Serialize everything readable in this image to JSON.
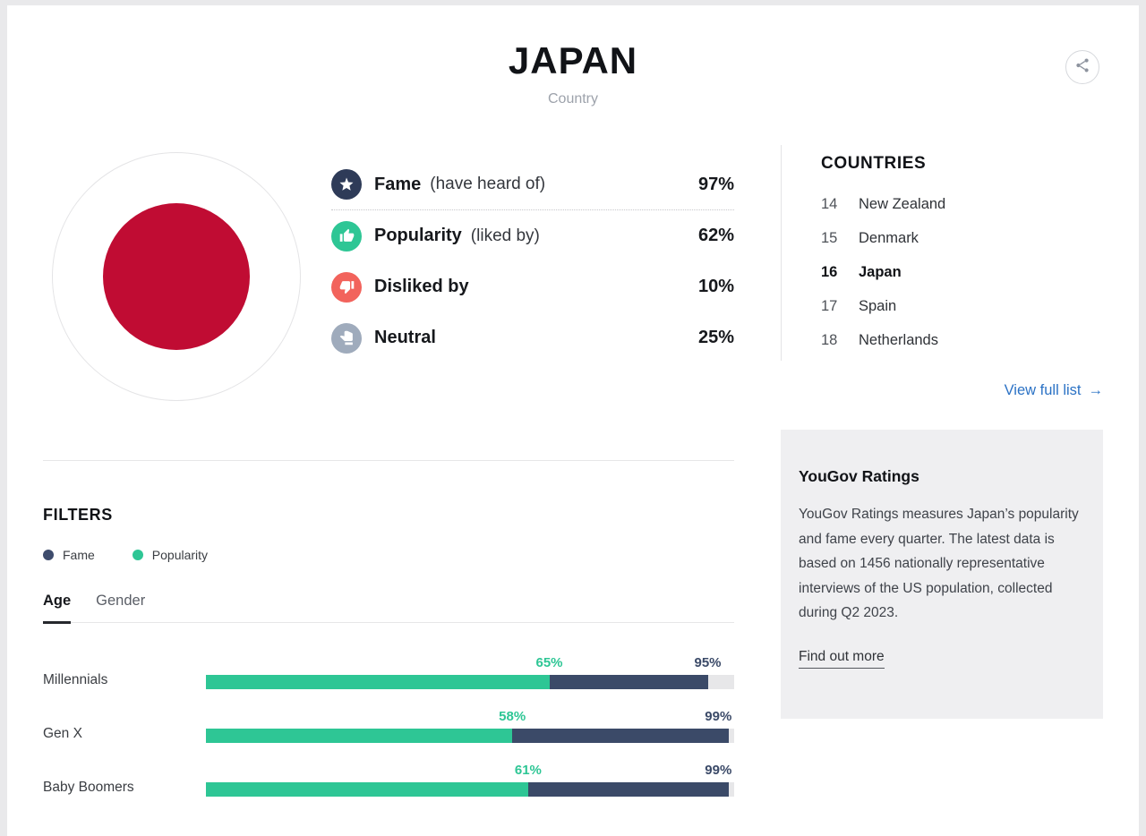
{
  "page": {
    "title": "JAPAN",
    "subtitle": "Country"
  },
  "stats": {
    "rows": [
      {
        "label": "Fame",
        "qualifier": "(have heard of)",
        "value": "97%",
        "icon": "star-icon",
        "color": "#2e3b58"
      },
      {
        "label": "Popularity",
        "qualifier": "(liked by)",
        "value": "62%",
        "icon": "thumb-up-icon",
        "color": "#2ec695"
      },
      {
        "label": "Disliked by",
        "qualifier": "",
        "value": "10%",
        "icon": "thumb-down-icon",
        "color": "#f2635c"
      },
      {
        "label": "Neutral",
        "qualifier": "",
        "value": "25%",
        "icon": "thumb-side-icon",
        "color": "#9fabbc"
      }
    ]
  },
  "countries": {
    "title": "COUNTRIES",
    "items": [
      {
        "rank": "14",
        "name": "New Zealand",
        "active": false
      },
      {
        "rank": "15",
        "name": "Denmark",
        "active": false
      },
      {
        "rank": "16",
        "name": "Japan",
        "active": true
      },
      {
        "rank": "17",
        "name": "Spain",
        "active": false
      },
      {
        "rank": "18",
        "name": "Netherlands",
        "active": false
      }
    ],
    "view_full_list_label": "View full list",
    "view_full_list_arrow": "→",
    "link_color": "#2b72c5"
  },
  "filters": {
    "title": "FILTERS",
    "legend": [
      {
        "label": "Fame",
        "color": "#3e4c6d"
      },
      {
        "label": "Popularity",
        "color": "#2ec695"
      }
    ],
    "tabs": [
      {
        "label": "Age",
        "active": true
      },
      {
        "label": "Gender",
        "active": false
      }
    ]
  },
  "chart_data": {
    "type": "bar",
    "orientation": "horizontal",
    "categories": [
      "Millennials",
      "Gen X",
      "Baby Boomers"
    ],
    "series": [
      {
        "name": "Popularity",
        "color": "#2ec695",
        "values": [
          65,
          58,
          61
        ]
      },
      {
        "name": "Fame",
        "color": "#3b4a68",
        "values": [
          95,
          99,
          99
        ]
      }
    ],
    "xlim": [
      0,
      100
    ],
    "value_suffix": "%",
    "track_color": "#e7e7e9",
    "legend_position": "top-left",
    "grid": false
  },
  "info_box": {
    "title": "YouGov Ratings",
    "body": "YouGov Ratings measures Japan’s popularity and fame every quarter. The latest data is based on 1456 nationally representative interviews of the US population, collected during Q2 2023.",
    "link_label": "Find out more"
  }
}
